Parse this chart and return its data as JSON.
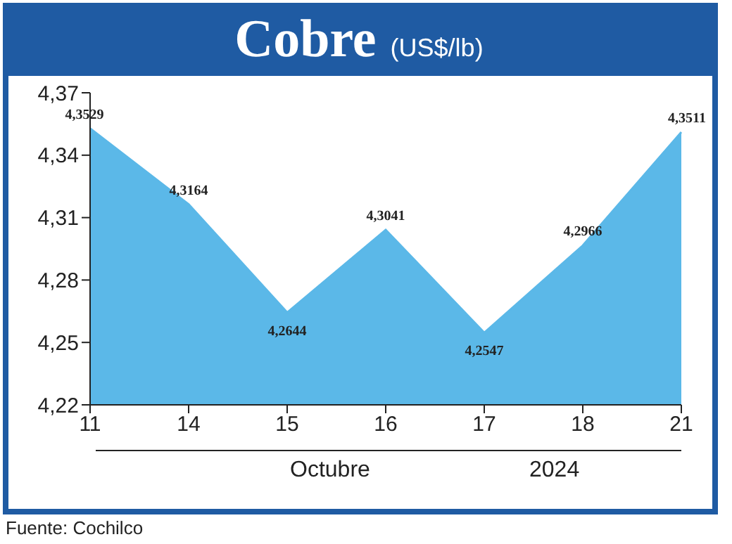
{
  "chart_data": {
    "type": "area",
    "title": "Cobre",
    "subtitle": "(US$/lb)",
    "categories": [
      "11",
      "14",
      "15",
      "16",
      "17",
      "18",
      "21"
    ],
    "series": [
      {
        "color": "#5bb8e8",
        "values": [
          4.3529,
          4.3164,
          4.2644,
          4.3041,
          4.2547,
          4.2966,
          4.3511
        ],
        "value_labels": [
          "4,3529",
          "4,3164",
          "4,2644",
          "4,3041",
          "4,2547",
          "4,2966",
          "4,3511"
        ]
      }
    ],
    "ylim": [
      4.22,
      4.37
    ],
    "yticks": [
      {
        "value": 4.22,
        "label": "4,22"
      },
      {
        "value": 4.25,
        "label": "4,25"
      },
      {
        "value": 4.28,
        "label": "4,28"
      },
      {
        "value": 4.31,
        "label": "4,31"
      },
      {
        "value": 4.34,
        "label": "4,34"
      },
      {
        "value": 4.37,
        "label": "4,37"
      }
    ],
    "annotations": [
      "Octubre",
      "2024",
      "Fuente: Cochilco"
    ]
  }
}
